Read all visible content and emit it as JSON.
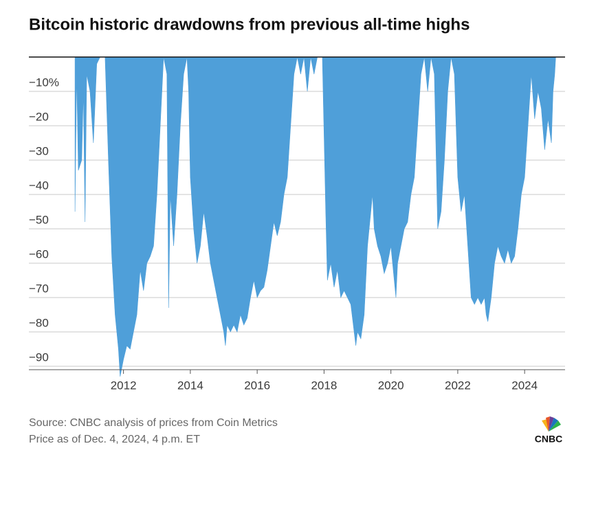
{
  "chart_data": {
    "type": "area",
    "title": "Bitcoin historic drawdowns from previous all-time highs",
    "source": "Source: CNBC analysis of prices from Coin Metrics",
    "note": "Price as of Dec. 4, 2024, 4 p.m. ET",
    "logo": "CNBC",
    "color": "#4f9fd9",
    "x": [
      2010.55,
      2010.6,
      2010.65,
      2010.75,
      2010.8,
      2010.85,
      2010.9,
      2011.0,
      2011.1,
      2011.2,
      2011.3,
      2011.45,
      2011.55,
      2011.65,
      2011.75,
      2011.85,
      2011.9,
      2012.0,
      2012.1,
      2012.2,
      2012.3,
      2012.4,
      2012.5,
      2012.6,
      2012.7,
      2012.8,
      2012.9,
      2013.0,
      2013.1,
      2013.2,
      2013.3,
      2013.35,
      2013.4,
      2013.5,
      2013.6,
      2013.7,
      2013.8,
      2013.9,
      2013.95,
      2014.0,
      2014.1,
      2014.2,
      2014.3,
      2014.4,
      2014.5,
      2014.6,
      2014.7,
      2014.8,
      2014.9,
      2015.0,
      2015.05,
      2015.1,
      2015.2,
      2015.3,
      2015.4,
      2015.5,
      2015.6,
      2015.7,
      2015.8,
      2015.9,
      2016.0,
      2016.1,
      2016.2,
      2016.3,
      2016.4,
      2016.5,
      2016.6,
      2016.7,
      2016.8,
      2016.9,
      2017.0,
      2017.1,
      2017.2,
      2017.3,
      2017.4,
      2017.5,
      2017.6,
      2017.7,
      2017.8,
      2017.95,
      2018.05,
      2018.1,
      2018.2,
      2018.3,
      2018.4,
      2018.5,
      2018.6,
      2018.7,
      2018.8,
      2018.9,
      2018.95,
      2019.0,
      2019.1,
      2019.2,
      2019.3,
      2019.45,
      2019.5,
      2019.6,
      2019.7,
      2019.8,
      2019.9,
      2020.0,
      2020.15,
      2020.2,
      2020.3,
      2020.4,
      2020.5,
      2020.6,
      2020.7,
      2020.8,
      2020.9,
      2021.0,
      2021.1,
      2021.2,
      2021.3,
      2021.4,
      2021.5,
      2021.6,
      2021.7,
      2021.8,
      2021.9,
      2022.0,
      2022.1,
      2022.2,
      2022.3,
      2022.4,
      2022.5,
      2022.6,
      2022.7,
      2022.8,
      2022.85,
      2022.9,
      2023.0,
      2023.1,
      2023.2,
      2023.3,
      2023.4,
      2023.5,
      2023.6,
      2023.7,
      2023.8,
      2023.9,
      2024.0,
      2024.1,
      2024.2,
      2024.3,
      2024.4,
      2024.5,
      2024.6,
      2024.7,
      2024.8,
      2024.85,
      2024.9,
      2024.93
    ],
    "values": [
      -45,
      -5,
      -33,
      -30,
      -10,
      -48,
      -5,
      -10,
      -25,
      -2,
      0,
      0,
      -30,
      -58,
      -75,
      -85,
      -93,
      -88,
      -84,
      -85,
      -80,
      -75,
      -62,
      -68,
      -60,
      -58,
      -55,
      -40,
      -20,
      0,
      -5,
      -73,
      -40,
      -55,
      -40,
      -20,
      -5,
      0,
      -10,
      -35,
      -50,
      -60,
      -55,
      -45,
      -52,
      -60,
      -65,
      -70,
      -75,
      -80,
      -84,
      -78,
      -80,
      -78,
      -80,
      -75,
      -78,
      -76,
      -70,
      -65,
      -70,
      -68,
      -67,
      -62,
      -55,
      -48,
      -52,
      -48,
      -40,
      -35,
      -20,
      -5,
      0,
      -5,
      0,
      -10,
      0,
      -5,
      0,
      0,
      -45,
      -65,
      -60,
      -67,
      -62,
      -70,
      -68,
      -70,
      -72,
      -80,
      -84,
      -80,
      -82,
      -75,
      -55,
      -40,
      -50,
      -55,
      -58,
      -63,
      -60,
      -55,
      -70,
      -60,
      -55,
      -50,
      -48,
      -40,
      -35,
      -20,
      -5,
      0,
      -10,
      0,
      -5,
      -50,
      -45,
      -30,
      -10,
      0,
      -5,
      -35,
      -45,
      -40,
      -55,
      -70,
      -72,
      -70,
      -72,
      -70,
      -75,
      -77,
      -70,
      -60,
      -55,
      -58,
      -60,
      -56,
      -60,
      -58,
      -50,
      -40,
      -35,
      -20,
      -5,
      -18,
      -10,
      -15,
      -27,
      -18,
      -25,
      -10,
      -5,
      0
    ],
    "xlim": [
      2009.17,
      2025.21
    ],
    "xticks": [
      2012,
      2014,
      2016,
      2018,
      2020,
      2022,
      2024
    ],
    "ylim": [
      -91,
      0
    ],
    "yticks": [
      {
        "value": -10,
        "label": "−10%"
      },
      {
        "value": -20,
        "label": "−20"
      },
      {
        "value": -30,
        "label": "−30"
      },
      {
        "value": -40,
        "label": "−40"
      },
      {
        "value": -50,
        "label": "−50"
      },
      {
        "value": -60,
        "label": "−60"
      },
      {
        "value": -70,
        "label": "−70"
      },
      {
        "value": -80,
        "label": "−80"
      },
      {
        "value": -90,
        "label": "−90"
      }
    ],
    "grid": true
  }
}
